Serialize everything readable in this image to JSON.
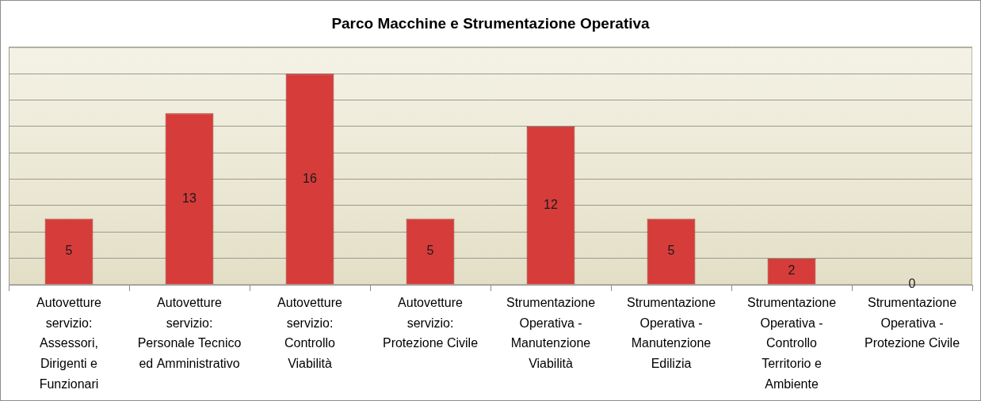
{
  "chart_data": {
    "type": "bar",
    "title": "Parco Macchine e Strumentazione Operativa",
    "categories": [
      "Autovetture servizio: Assessori, Dirigenti e Funzionari",
      "Autovetture servizio: Personale Tecnico ed Amministrativo",
      "Autovetture servizio: Controllo Viabilità",
      "Autovetture servizio: Protezione Civile",
      "Strumentazione Operativa - Manutenzione Viabilità",
      "Strumentazione Operativa - Manutenzione Edilizia",
      "Strumentazione Operativa - Controllo Territorio e Ambiente",
      "Strumentazione Operativa - Protezione Civile"
    ],
    "values": [
      5,
      13,
      16,
      5,
      12,
      5,
      2,
      0
    ],
    "color": "#d63c3a",
    "ylim": [
      0,
      18
    ],
    "yticks": [
      0,
      2,
      4,
      6,
      8,
      10,
      12,
      14,
      16,
      18
    ],
    "grid": true,
    "data_labels": true,
    "tick_labels": "x"
  }
}
